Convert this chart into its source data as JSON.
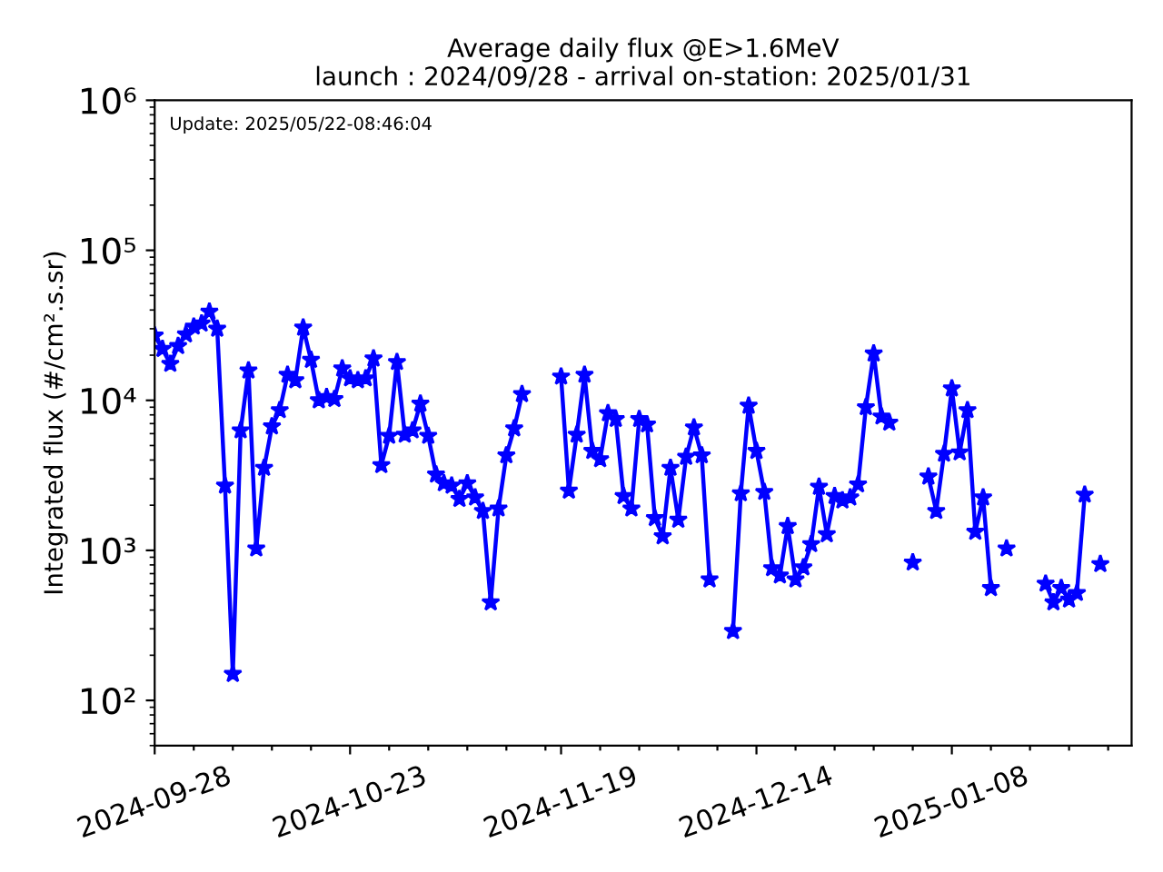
{
  "chart_data": {
    "type": "line",
    "title": "Average daily flux @E>1.6MeV",
    "subtitle": "launch : 2024/09/28 - arrival on-station: 2025/01/31",
    "ylabel": "Integrated flux (#/cm².s.sr)",
    "annotations": [
      "Update: 2025/05/22-08:46:04"
    ],
    "log": "y",
    "marker": "star",
    "line_style": "solid",
    "grid": false,
    "xlim": [
      "2024-09-28",
      "2025-01-31"
    ],
    "xticks": [
      {
        "value": "2024-09-28",
        "label": "2024-09-28"
      },
      {
        "value": "2024-10-03",
        "label": null
      },
      {
        "value": "2024-10-08",
        "label": null
      },
      {
        "value": "2024-10-13",
        "label": null
      },
      {
        "value": "2024-10-18",
        "label": null
      },
      {
        "value": "2024-10-23",
        "label": "2024-10-23"
      },
      {
        "value": "2024-10-28",
        "label": null
      },
      {
        "value": "2024-11-02",
        "label": null
      },
      {
        "value": "2024-11-07",
        "label": null
      },
      {
        "value": "2024-11-12",
        "label": null
      },
      {
        "value": "2024-11-17",
        "label": null
      },
      {
        "value": "2024-11-19",
        "label": "2024-11-19"
      },
      {
        "value": "2024-11-24",
        "label": null
      },
      {
        "value": "2024-11-29",
        "label": null
      },
      {
        "value": "2024-12-04",
        "label": null
      },
      {
        "value": "2024-12-09",
        "label": null
      },
      {
        "value": "2024-12-14",
        "label": "2024-12-14"
      },
      {
        "value": "2024-12-19",
        "label": null
      },
      {
        "value": "2024-12-24",
        "label": null
      },
      {
        "value": "2024-12-29",
        "label": null
      },
      {
        "value": "2025-01-03",
        "label": null
      },
      {
        "value": "2025-01-08",
        "label": "2025-01-08"
      },
      {
        "value": "2025-01-13",
        "label": null
      },
      {
        "value": "2025-01-18",
        "label": null
      },
      {
        "value": "2025-01-23",
        "label": null
      },
      {
        "value": "2025-01-28",
        "label": null
      }
    ],
    "ylim": [
      50,
      1000000
    ],
    "yticks": [
      {
        "value": 100,
        "label": "10²"
      },
      {
        "value": 1000,
        "label": "10³"
      },
      {
        "value": 10000,
        "label": "10⁴"
      },
      {
        "value": 100000,
        "label": "10⁵"
      },
      {
        "value": 1000000,
        "label": "10⁶"
      }
    ],
    "x": [
      "2024-09-28",
      "2024-09-29",
      "2024-09-30",
      "2024-10-01",
      "2024-10-02",
      "2024-10-03",
      "2024-10-04",
      "2024-10-05",
      "2024-10-06",
      "2024-10-07",
      "2024-10-08",
      "2024-10-09",
      "2024-10-10",
      "2024-10-11",
      "2024-10-12",
      "2024-10-13",
      "2024-10-14",
      "2024-10-15",
      "2024-10-16",
      "2024-10-17",
      "2024-10-18",
      "2024-10-19",
      "2024-10-20",
      "2024-10-21",
      "2024-10-22",
      "2024-10-23",
      "2024-10-24",
      "2024-10-25",
      "2024-10-26",
      "2024-10-27",
      "2024-10-28",
      "2024-10-29",
      "2024-10-30",
      "2024-10-31",
      "2024-11-01",
      "2024-11-02",
      "2024-11-03",
      "2024-11-04",
      "2024-11-05",
      "2024-11-06",
      "2024-11-07",
      "2024-11-08",
      "2024-11-09",
      "2024-11-10",
      "2024-11-11",
      "2024-11-12",
      "2024-11-13",
      "2024-11-14",
      "2024-11-15",
      "2024-11-16",
      "2024-11-17",
      "2024-11-18",
      "2024-11-19",
      "2024-11-20",
      "2024-11-21",
      "2024-11-22",
      "2024-11-23",
      "2024-11-24",
      "2024-11-25",
      "2024-11-26",
      "2024-11-27",
      "2024-11-28",
      "2024-11-29",
      "2024-11-30",
      "2024-12-01",
      "2024-12-02",
      "2024-12-03",
      "2024-12-04",
      "2024-12-05",
      "2024-12-06",
      "2024-12-07",
      "2024-12-08",
      "2024-12-09",
      "2024-12-10",
      "2024-12-11",
      "2024-12-12",
      "2024-12-13",
      "2024-12-14",
      "2024-12-15",
      "2024-12-16",
      "2024-12-17",
      "2024-12-18",
      "2024-12-19",
      "2024-12-20",
      "2024-12-21",
      "2024-12-22",
      "2024-12-23",
      "2024-12-24",
      "2024-12-25",
      "2024-12-26",
      "2024-12-27",
      "2024-12-28",
      "2024-12-29",
      "2024-12-30",
      "2024-12-31",
      "2025-01-01",
      "2025-01-02",
      "2025-01-03",
      "2025-01-04",
      "2025-01-05",
      "2025-01-06",
      "2025-01-07",
      "2025-01-08",
      "2025-01-09",
      "2025-01-10",
      "2025-01-11",
      "2025-01-12",
      "2025-01-13",
      "2025-01-14",
      "2025-01-15",
      "2025-01-16",
      "2025-01-17",
      "2025-01-18",
      "2025-01-19",
      "2025-01-20",
      "2025-01-21",
      "2025-01-22",
      "2025-01-23",
      "2025-01-24",
      "2025-01-25",
      "2025-01-26",
      "2025-01-27"
    ],
    "series": [
      {
        "color": "#0000ff",
        "values": [
          27000,
          22000,
          17500,
          23000,
          27500,
          31000,
          32500,
          39000,
          30000,
          2700,
          150,
          6300,
          15800,
          1030,
          3550,
          6700,
          8600,
          14800,
          13600,
          30500,
          18600,
          10000,
          10500,
          10200,
          16300,
          14000,
          13600,
          14000,
          19000,
          3700,
          5800,
          18000,
          5900,
          6300,
          9500,
          5800,
          3200,
          2800,
          2700,
          2200,
          2800,
          2250,
          1830,
          450,
          1900,
          4300,
          6500,
          11000,
          null,
          null,
          null,
          null,
          14400,
          2500,
          5900,
          14800,
          4600,
          4050,
          8200,
          7500,
          2300,
          1900,
          7500,
          6900,
          1640,
          1240,
          3550,
          1600,
          4200,
          6600,
          4300,
          640,
          null,
          null,
          290,
          2400,
          9200,
          4600,
          2450,
          760,
          680,
          1450,
          640,
          770,
          1100,
          2650,
          1280,
          2300,
          2150,
          2250,
          2750,
          9000,
          20500,
          7800,
          7100,
          null,
          null,
          830,
          null,
          3100,
          1830,
          4400,
          12000,
          4500,
          8600,
          1330,
          2250,
          560,
          null,
          1030,
          null,
          null,
          null,
          null,
          600,
          450,
          560,
          470,
          520,
          2350,
          null,
          810
        ]
      }
    ]
  }
}
